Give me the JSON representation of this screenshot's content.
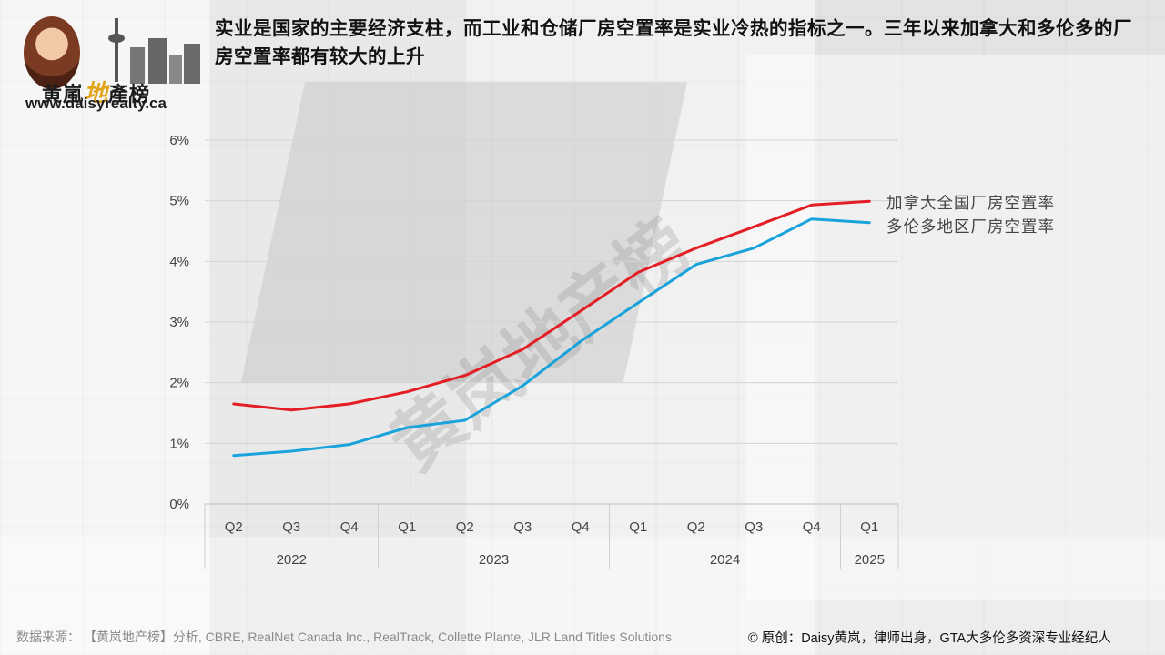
{
  "header": {
    "title": "实业是国家的主要经济支柱，而工业和仓储厂房空置率是实业冷热的指标之一。三年以来加拿大和多伦多的厂房空置率都有较大的上升"
  },
  "logo": {
    "brand_main": "黄嵐",
    "brand_accent": "地",
    "brand_tail": "產榜",
    "url": "www.daisyrealty.ca"
  },
  "watermark": "黄岚地产榜",
  "footer": {
    "source": "数据来源：  【黄岚地产榜】分析, CBRE, RealNet Canada Inc., RealTrack, Collette Plante, JLR Land Titles Solutions",
    "credit": "© 原创：Daisy黄岚，律师出身，GTA大多伦多资深专业经纪人"
  },
  "chart_data": {
    "type": "line",
    "categories": [
      "Q2",
      "Q3",
      "Q4",
      "Q1",
      "Q2",
      "Q3",
      "Q4",
      "Q1",
      "Q2",
      "Q3",
      "Q4",
      "Q1"
    ],
    "year_groups": [
      {
        "label": "2022",
        "count": 3
      },
      {
        "label": "2023",
        "count": 4
      },
      {
        "label": "2024",
        "count": 4
      },
      {
        "label": "2025",
        "count": 1
      }
    ],
    "series": [
      {
        "name": "加拿大全国厂房空置率",
        "color": "#e31e24",
        "values": [
          1.65,
          1.55,
          1.65,
          1.85,
          2.12,
          2.55,
          3.18,
          3.82,
          4.22,
          4.57,
          4.93,
          4.99
        ]
      },
      {
        "name": "多伦多地区厂房空置率",
        "color": "#1aa3db",
        "values": [
          0.8,
          0.87,
          0.98,
          1.26,
          1.38,
          1.95,
          2.68,
          3.32,
          3.95,
          4.22,
          4.7,
          4.64
        ]
      }
    ],
    "yticks": [
      "0%",
      "1%",
      "2%",
      "3%",
      "4%",
      "5%",
      "6%"
    ],
    "ylim": [
      0,
      6
    ],
    "grid": true,
    "legend": "right, at line ends"
  }
}
